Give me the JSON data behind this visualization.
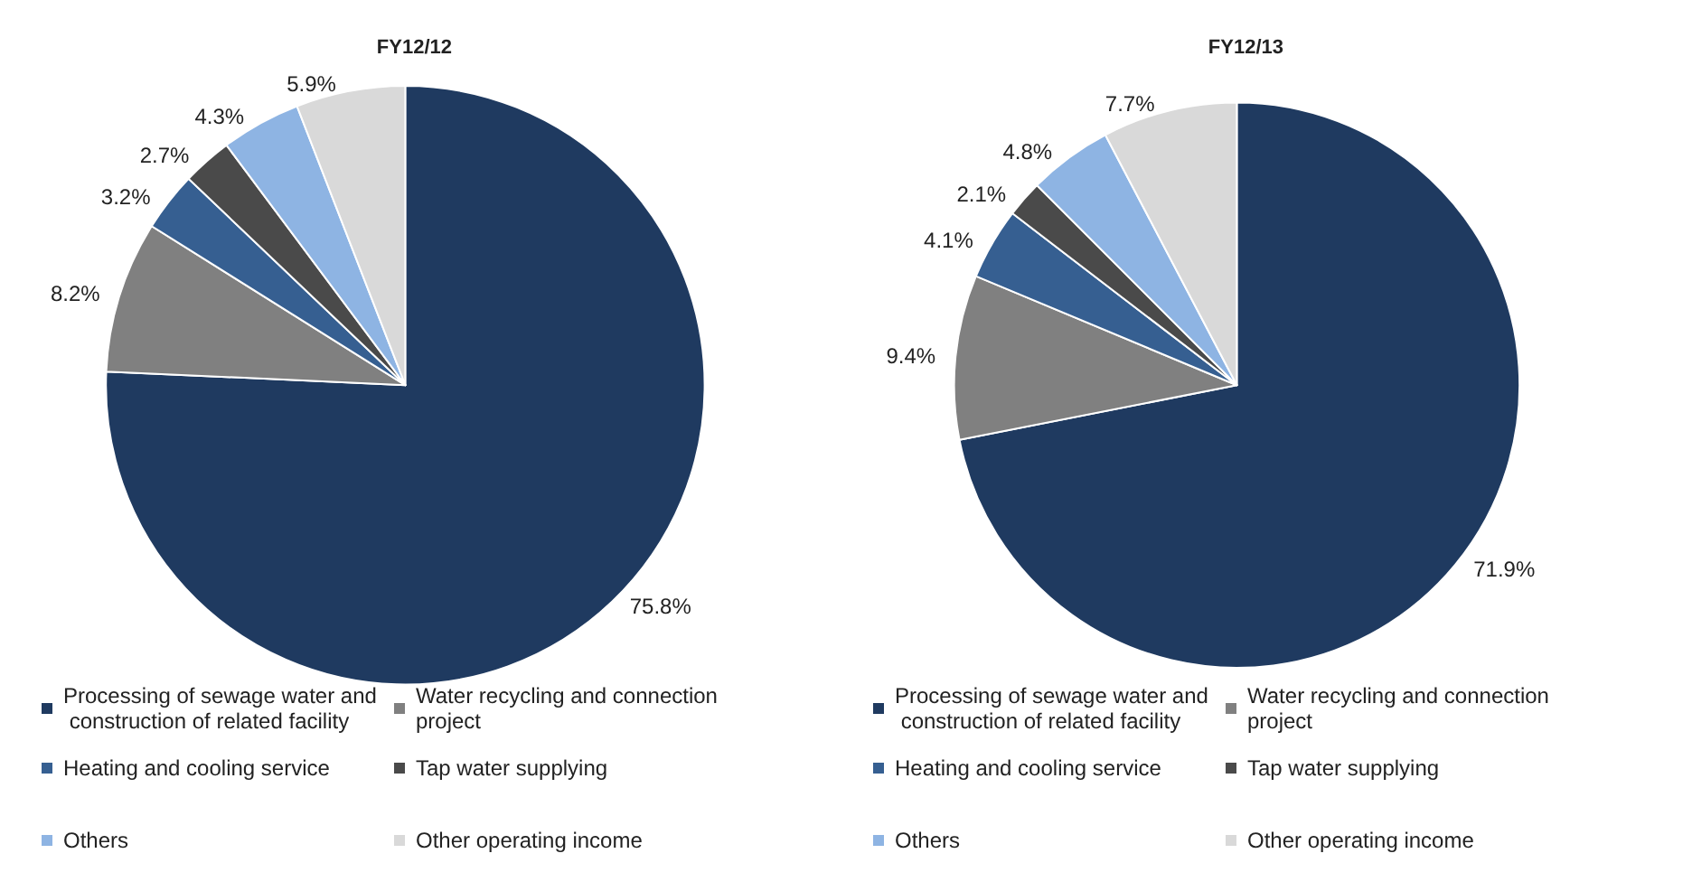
{
  "chart_data": [
    {
      "type": "pie",
      "title": "FY12/12",
      "categories": [
        "Processing of sewage water and construction of related facility",
        "Water recycling and connection project",
        "Heating and cooling service",
        "Tap water supplying",
        "Others",
        "Other operating income"
      ],
      "values": [
        75.8,
        8.2,
        3.2,
        2.7,
        4.3,
        5.9
      ],
      "value_labels": [
        "75.8%",
        "8.2%",
        "3.2%",
        "2.7%",
        "4.3%",
        "5.9%"
      ],
      "colors": [
        "#1f3a60",
        "#808080",
        "#365f91",
        "#4a4a4a",
        "#8eb4e3",
        "#d9d9d9"
      ],
      "legend": "bottom"
    },
    {
      "type": "pie",
      "title": "FY12/13",
      "categories": [
        "Processing of sewage water and construction of related facility",
        "Water recycling and connection project",
        "Heating and cooling service",
        "Tap water supplying",
        "Others",
        "Other operating income"
      ],
      "values": [
        71.9,
        9.4,
        4.1,
        2.1,
        4.8,
        7.7
      ],
      "value_labels": [
        "71.9%",
        "9.4%",
        "4.1%",
        "2.1%",
        "4.8%",
        "7.7%"
      ],
      "colors": [
        "#1f3a60",
        "#808080",
        "#365f91",
        "#4a4a4a",
        "#8eb4e3",
        "#d9d9d9"
      ],
      "legend": "bottom"
    }
  ]
}
